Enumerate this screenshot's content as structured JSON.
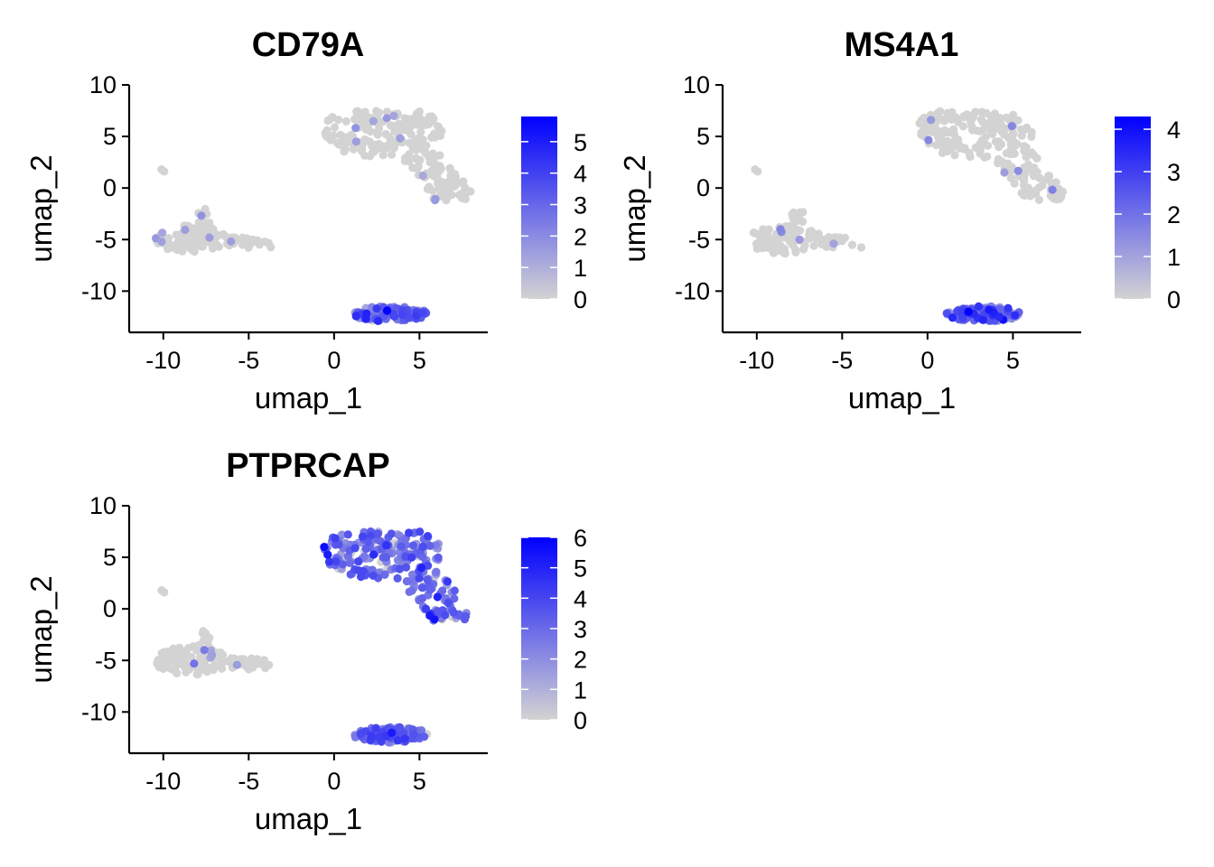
{
  "colors": {
    "low": "#d3d3d3",
    "high": "#0000ff",
    "axis": "#000000"
  },
  "chart_data": [
    {
      "type": "scatter",
      "title": "CD79A",
      "xlabel": "umap_1",
      "ylabel": "umap_2",
      "xlim": [
        -12,
        9
      ],
      "ylim": [
        -14,
        10
      ],
      "xticks": [
        -10,
        -5,
        0,
        5
      ],
      "yticks": [
        10,
        5,
        0,
        -5,
        -10
      ],
      "xtick_labels": [
        "-10",
        "-5",
        "0",
        "5"
      ],
      "ytick_labels": [
        "10",
        "5",
        "0",
        "-5",
        "-10"
      ],
      "color_scale": {
        "min": 0,
        "max": 5.8,
        "ticks": [
          "0",
          "1",
          "2",
          "3",
          "4",
          "5"
        ]
      },
      "expression": {
        "cluster_b_mean": 2.6,
        "cluster_t_mean": 0.05,
        "cluster_m_mean": 0.03
      },
      "highlights": [
        {
          "x": 3.1,
          "y": -11.9,
          "value": 5.8
        },
        {
          "x": 2.5,
          "y": -11.7,
          "value": 4.2
        },
        {
          "x": 4.0,
          "y": -12.3,
          "value": 3.9
        },
        {
          "x": 1.3,
          "y": 4.5,
          "value": 1.5
        },
        {
          "x": 3.5,
          "y": 7.0,
          "value": 1.3
        },
        {
          "x": -10.1,
          "y": -5.2,
          "value": 1.4
        },
        {
          "x": -7.3,
          "y": -4.8,
          "value": 1.5
        },
        {
          "x": 5.2,
          "y": 1.2,
          "value": 1.2
        }
      ]
    },
    {
      "type": "scatter",
      "title": "MS4A1",
      "xlabel": "umap_1",
      "ylabel": "umap_2",
      "xlim": [
        -12,
        9
      ],
      "ylim": [
        -14,
        10
      ],
      "xticks": [
        -10,
        -5,
        0,
        5
      ],
      "yticks": [
        10,
        5,
        0,
        -5,
        -10
      ],
      "xtick_labels": [
        "-10",
        "-5",
        "0",
        "5"
      ],
      "ytick_labels": [
        "10",
        "5",
        "0",
        "-5",
        "-10"
      ],
      "color_scale": {
        "min": 0,
        "max": 4.3,
        "ticks": [
          "0",
          "1",
          "2",
          "3",
          "4"
        ]
      },
      "expression": {
        "cluster_b_mean": 2.1,
        "cluster_t_mean": 0.04,
        "cluster_m_mean": 0.03
      },
      "highlights": [
        {
          "x": 2.4,
          "y": -12.0,
          "value": 4.3
        },
        {
          "x": 3.6,
          "y": -11.8,
          "value": 3.8
        },
        {
          "x": 4.2,
          "y": -12.5,
          "value": 3.5
        },
        {
          "x": 0.2,
          "y": 6.6,
          "value": 1.2
        },
        {
          "x": 4.5,
          "y": 1.5,
          "value": 1.1
        },
        {
          "x": -7.5,
          "y": -5.0,
          "value": 1.2
        },
        {
          "x": -5.5,
          "y": -5.4,
          "value": 1.0
        }
      ]
    },
    {
      "type": "scatter",
      "title": "PTPRCAP",
      "xlabel": "umap_1",
      "ylabel": "umap_2",
      "xlim": [
        -12,
        9
      ],
      "ylim": [
        -14,
        10
      ],
      "xticks": [
        -10,
        -5,
        0,
        5
      ],
      "yticks": [
        10,
        5,
        0,
        -5,
        -10
      ],
      "xtick_labels": [
        "-10",
        "-5",
        "0",
        "5"
      ],
      "ytick_labels": [
        "10",
        "5",
        "0",
        "-5",
        "-10"
      ],
      "color_scale": {
        "min": 0,
        "max": 6,
        "ticks": [
          "0",
          "1",
          "2",
          "3",
          "4",
          "5",
          "6"
        ]
      },
      "expression": {
        "cluster_b_mean": 2.7,
        "cluster_t_mean": 2.8,
        "cluster_m_mean": 0.3
      },
      "highlights": [
        {
          "x": 6.5,
          "y": -0.6,
          "value": 3.8
        },
        {
          "x": 2.0,
          "y": 6.5,
          "value": 3.5
        },
        {
          "x": -7.6,
          "y": -4.0,
          "value": 2.5
        },
        {
          "x": -8.2,
          "y": -5.3,
          "value": 2.8
        }
      ]
    }
  ]
}
